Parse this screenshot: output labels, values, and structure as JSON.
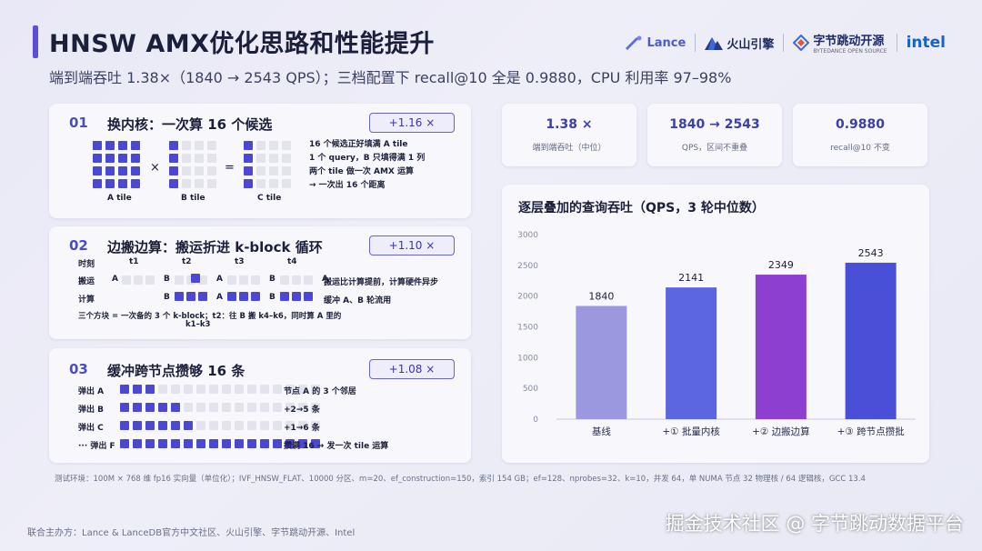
{
  "header": {
    "title": "HNSW AMX优化思路和性能提升",
    "subtitle": "端到端吞吐 1.38×（1840 → 2543 QPS）；三档配置下 recall@10 全是 0.9880，CPU 利用率 97–98%",
    "logos": {
      "lance": "Lance",
      "huoshan": "火山引擎",
      "bytedance": "字节跳动开源",
      "bytedance_sub": "BYTEDANCE OPEN SOURCE",
      "intel": "intel"
    }
  },
  "sections": [
    {
      "num": "01",
      "title": "换内核：一次算 16 个候选",
      "badge": "+1.16 ×",
      "tile_labels": [
        "A tile",
        "B tile",
        "C tile"
      ],
      "ops": [
        "×",
        "="
      ],
      "notes": [
        "16 个候选正好填满 A tile",
        "1 个 query，B 只填得满 1 列",
        "两个 tile 做一次 AMX 运算",
        "→ 一次出 16 个距离"
      ]
    },
    {
      "num": "02",
      "title": "边搬边算：搬运折进 k-block 循环",
      "badge": "+1.10 ×",
      "row_labels": [
        "时刻",
        "搬运",
        "计算"
      ],
      "times": [
        "t1",
        "t2",
        "t3",
        "t4"
      ],
      "letters": [
        "A",
        "B",
        "A",
        "B",
        "A",
        "B",
        "A",
        "B",
        "A"
      ],
      "notes": [
        "搬运比计算提前，计算硬件异步",
        "缓冲 A、B 轮流用"
      ],
      "caption1": "三个方块 = 一次备的 3 个 k-block；t2：往 B 搬 k4–k6，同时算 A 里的",
      "caption2": "k1–k3"
    },
    {
      "num": "03",
      "title": "缓冲跨节点攒够 16 条",
      "badge": "+1.08 ×",
      "rows": [
        {
          "label": "弹出 A",
          "filled": 3,
          "note": "节点 A 的 3 个邻居"
        },
        {
          "label": "弹出 B",
          "filled": 5,
          "note": "+2→5 条"
        },
        {
          "label": "弹出 C",
          "filled": 6,
          "note": "+1→6 条"
        },
        {
          "label": "··· 弹出 F",
          "filled": 16,
          "note": "攒满 16 → 发一次 tile 运算"
        }
      ]
    }
  ],
  "stats": [
    {
      "value": "1.38 ×",
      "desc": "端到端吞吐（中位）"
    },
    {
      "value": "1840 → 2543",
      "desc": "QPS，区间不重叠"
    },
    {
      "value": "0.9880",
      "desc": "recall@10 不变"
    }
  ],
  "chart_data": {
    "type": "bar",
    "title": "逐层叠加的查询吞吐（QPS，3 轮中位数）",
    "categories": [
      "基线",
      "+① 批量内核",
      "+② 边搬边算",
      "+③ 跨节点攒批"
    ],
    "values": [
      1840,
      2141,
      2349,
      2543
    ],
    "value_labels": [
      "1840",
      "2141",
      "2349",
      "2543"
    ],
    "yticks": [
      "0",
      "500",
      "1000",
      "1500",
      "2000",
      "2500",
      "3000"
    ],
    "ylim": [
      0,
      3000
    ],
    "colors": [
      "#9b98e0",
      "#5b66e0",
      "#8d3fcf",
      "#4a4fd8"
    ],
    "grid": false
  },
  "footnote": "测试环境：100M × 768 维 fp16 实向量（单位化）；IVF_HNSW_FLAT、10000 分区、m=20、ef_construction=150，索引 154 GB；ef=128、nprobes=32、k=10，并发 64，单 NUMA 节点 32 物理核 / 64 逻辑核，GCC 13.4",
  "organizers": "联合主办方：Lance & LanceDB官方中文社区、火山引擎、字节跳动开源、Intel",
  "watermark": "掘金技术社区 @ 字节跳动数据平台"
}
